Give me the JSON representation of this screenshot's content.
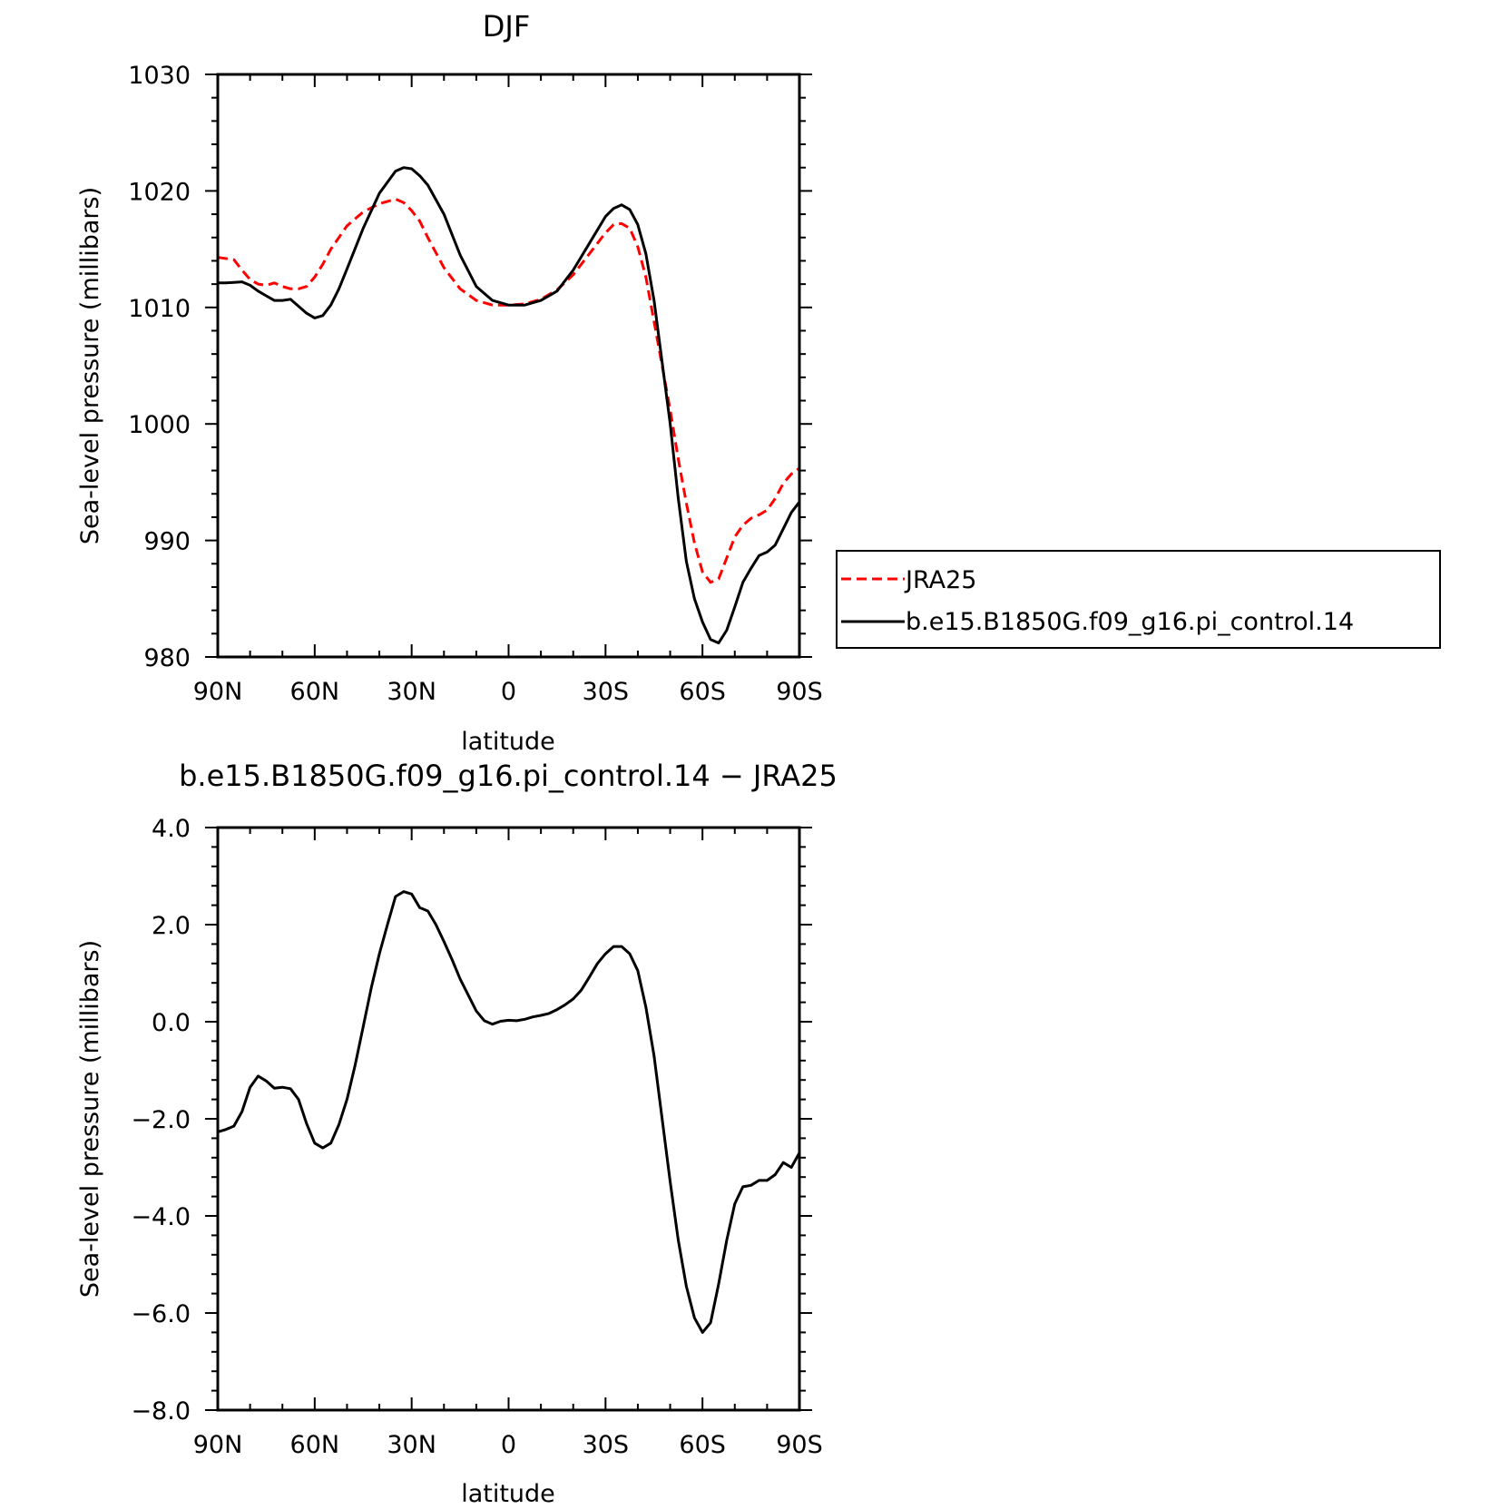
{
  "chart_data": [
    {
      "type": "line",
      "title": "DJF",
      "xlabel": "latitude",
      "ylabel": "Sea-level pressure (millibars)",
      "xlim": [
        90,
        -90
      ],
      "ylim": [
        980,
        1030
      ],
      "xticks": [
        {
          "value": 90,
          "label": "90N"
        },
        {
          "value": 60,
          "label": "60N"
        },
        {
          "value": 30,
          "label": "30N"
        },
        {
          "value": 0,
          "label": "0"
        },
        {
          "value": -30,
          "label": "30S"
        },
        {
          "value": -60,
          "label": "60S"
        },
        {
          "value": -90,
          "label": "90S"
        }
      ],
      "yticks": [
        {
          "value": 980,
          "label": "980"
        },
        {
          "value": 990,
          "label": "990"
        },
        {
          "value": 1000,
          "label": "1000"
        },
        {
          "value": 1010,
          "label": "1010"
        },
        {
          "value": 1020,
          "label": "1020"
        },
        {
          "value": 1030,
          "label": "1030"
        }
      ],
      "legend": {
        "placement": "right"
      },
      "series": [
        {
          "name": "JRA25",
          "color": "#ff0000",
          "dash": "dashed",
          "x": [
            90,
            85,
            82.5,
            80,
            77.5,
            75,
            72.5,
            70,
            67.5,
            65,
            62.5,
            60,
            57.5,
            55,
            50,
            45,
            40,
            35,
            32.5,
            30,
            27.5,
            25,
            20,
            15,
            10,
            5,
            0,
            -5,
            -10,
            -15,
            -20,
            -25,
            -30,
            -32.5,
            -35,
            -37.5,
            -40,
            -42.5,
            -45,
            -50,
            -52.5,
            -55,
            -57.5,
            -60,
            -62.5,
            -65,
            -67.5,
            -70,
            -72.5,
            -75,
            -77.5,
            -80,
            -82.5,
            -85,
            -87.5,
            -90
          ],
          "y": [
            1014.3,
            1014.1,
            1013.2,
            1012.4,
            1012.0,
            1011.9,
            1012.1,
            1011.8,
            1011.6,
            1011.6,
            1011.8,
            1012.6,
            1013.7,
            1015.0,
            1017.0,
            1018.2,
            1018.9,
            1019.3,
            1019.0,
            1018.3,
            1017.4,
            1016.0,
            1013.4,
            1011.6,
            1010.6,
            1010.2,
            1010.2,
            1010.3,
            1010.7,
            1011.5,
            1012.8,
            1014.6,
            1016.4,
            1017.1,
            1017.2,
            1016.8,
            1015.2,
            1012.6,
            1008.8,
            1001.2,
            997.0,
            993.2,
            989.8,
            987.3,
            986.4,
            986.7,
            988.5,
            990.3,
            991.3,
            991.9,
            992.2,
            992.6,
            993.6,
            994.9,
            995.7,
            996.2
          ]
        },
        {
          "name": "b.e15.B1850G.f09_g16.pi_control.14",
          "color": "#000000",
          "dash": "solid",
          "x": [
            90,
            87.5,
            82.5,
            80,
            77.5,
            75,
            72.5,
            70,
            67.5,
            65,
            62.5,
            60,
            57.5,
            55,
            52.5,
            50,
            45,
            40,
            35,
            32.5,
            30,
            27.5,
            25,
            20,
            15,
            10,
            5,
            0,
            -5,
            -10,
            -15,
            -20,
            -25,
            -30,
            -32.5,
            -35,
            -37.5,
            -40,
            -42.5,
            -45,
            -50,
            -52.5,
            -55,
            -57.5,
            -60,
            -62.5,
            -65,
            -67.5,
            -70,
            -72.5,
            -75,
            -77.5,
            -80,
            -82.5,
            -85,
            -87.5,
            -90
          ],
          "y": [
            1012.1,
            1012.1,
            1012.2,
            1011.9,
            1011.4,
            1011.0,
            1010.6,
            1010.6,
            1010.7,
            1010.1,
            1009.5,
            1009.1,
            1009.3,
            1010.2,
            1011.6,
            1013.3,
            1016.8,
            1019.8,
            1021.7,
            1022.0,
            1021.9,
            1021.3,
            1020.5,
            1018.0,
            1014.5,
            1011.8,
            1010.6,
            1010.2,
            1010.2,
            1010.6,
            1011.4,
            1013.2,
            1015.5,
            1017.8,
            1018.5,
            1018.8,
            1018.4,
            1017.1,
            1014.6,
            1010.6,
            1000.0,
            993.6,
            988.2,
            985.0,
            983.0,
            981.5,
            981.2,
            982.3,
            984.3,
            986.4,
            987.6,
            988.7,
            989.0,
            989.6,
            991.0,
            992.4,
            993.3
          ]
        }
      ]
    },
    {
      "type": "line",
      "title": "b.e15.B1850G.f09_g16.pi_control.14 − JRA25",
      "xlabel": "latitude",
      "ylabel": "Sea-level pressure (millibars)",
      "xlim": [
        90,
        -90
      ],
      "ylim": [
        -8,
        4
      ],
      "xticks": [
        {
          "value": 90,
          "label": "90N"
        },
        {
          "value": 60,
          "label": "60N"
        },
        {
          "value": 30,
          "label": "30N"
        },
        {
          "value": 0,
          "label": "0"
        },
        {
          "value": -30,
          "label": "30S"
        },
        {
          "value": -60,
          "label": "60S"
        },
        {
          "value": -90,
          "label": "90S"
        }
      ],
      "yticks": [
        {
          "value": -8,
          "label": "−8.0"
        },
        {
          "value": -6,
          "label": "−6.0"
        },
        {
          "value": -4,
          "label": "−4.0"
        },
        {
          "value": -2,
          "label": "−2.0"
        },
        {
          "value": 0,
          "label": "0.0"
        },
        {
          "value": 2,
          "label": "2.0"
        },
        {
          "value": 4,
          "label": "4.0"
        }
      ],
      "series": [
        {
          "color": "#000000",
          "dash": "solid",
          "x": [
            90,
            87.5,
            85,
            82.5,
            80,
            77.5,
            75,
            72.5,
            70,
            67.5,
            65,
            62.5,
            60,
            57.5,
            55,
            52.5,
            50,
            47.5,
            45,
            42.5,
            40,
            37.5,
            35,
            32.5,
            30,
            27.5,
            25,
            22.5,
            20,
            17.5,
            15,
            12.5,
            10,
            7.5,
            5,
            2.5,
            0,
            -2.5,
            -5,
            -7.5,
            -10,
            -12.5,
            -15,
            -17.5,
            -20,
            -22.5,
            -25,
            -27.5,
            -30,
            -32.5,
            -35,
            -37.5,
            -40,
            -42.5,
            -45,
            -47.5,
            -50,
            -52.5,
            -55,
            -57.5,
            -60,
            -62.5,
            -65,
            -67.5,
            -70,
            -72.5,
            -75,
            -77.5,
            -80,
            -82.5,
            -85,
            -87.5,
            -90
          ],
          "y": [
            -2.27,
            -2.22,
            -2.15,
            -1.85,
            -1.35,
            -1.12,
            -1.22,
            -1.37,
            -1.35,
            -1.38,
            -1.6,
            -2.1,
            -2.5,
            -2.6,
            -2.5,
            -2.12,
            -1.6,
            -0.9,
            -0.1,
            0.7,
            1.4,
            2.0,
            2.58,
            2.68,
            2.63,
            2.35,
            2.28,
            2.0,
            1.65,
            1.28,
            0.88,
            0.55,
            0.22,
            0.02,
            -0.05,
            0.01,
            0.03,
            0.02,
            0.05,
            0.1,
            0.13,
            0.17,
            0.25,
            0.35,
            0.47,
            0.65,
            0.92,
            1.2,
            1.4,
            1.55,
            1.55,
            1.4,
            1.05,
            0.3,
            -0.7,
            -2.0,
            -3.3,
            -4.5,
            -5.45,
            -6.1,
            -6.4,
            -6.2,
            -5.4,
            -4.5,
            -3.75,
            -3.4,
            -3.37,
            -3.27,
            -3.27,
            -3.15,
            -2.9,
            -3.0,
            -2.7
          ]
        }
      ]
    }
  ]
}
